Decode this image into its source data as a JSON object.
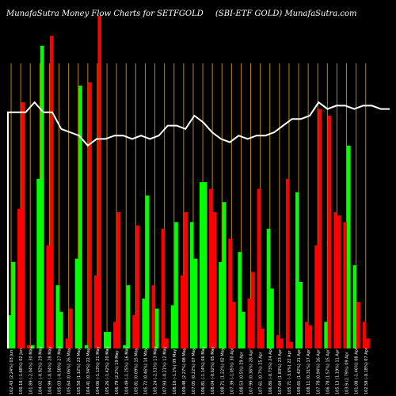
{
  "header": {
    "left_title": "MunafaSutra  Money Flow  Charts for SETFGOLD",
    "right_title": "(SBI-ETF GOLD) MunafaSutra.com"
  },
  "colors": {
    "background": "#000000",
    "grid": "#b8860b",
    "up": "#00ff00",
    "down": "#ff0000",
    "price_line": "#ffffff"
  },
  "chart_data": {
    "type": "bar",
    "title": "MunafaSutra  Money Flow  Charts for SETFGOLD",
    "legend": "none",
    "grid": true,
    "ylim": [
      0,
      100
    ],
    "categories": [
      "102.43 (2.24%) 03 Jun",
      "100.18 (-1.68%) 02 Jun",
      "101.89 (-2.04%) 30 May",
      "104.02 (-0.92%) 29 May",
      "104.99 (-0.04%) 28 May",
      "105.03 (-0.58%) 27 May",
      "105.64 (0.06%) 26 May",
      "105.58 (1.12%) 23 May",
      "104.41 (0.34%) 22 May",
      "104.06 (-1.13%) 21 May",
      "105.26 (-1.42%) 20 May",
      "106.79 (2.2%) 19 May",
      "104.49 (-1.25%) 16 May",
      "105.81 (0.09%) 15 May",
      "105.72 (0.46%) 14 May",
      "105.24 (-2.51%) 13 May",
      "107.93 (-0.21%) 12 May",
      "108.16 (-1.2%) 09 May",
      "109.48 (2.27%) 08 May",
      "107.05 (0.22%) 07 May",
      "106.81 (-1.14%) 06 May",
      "108.04 (-0.62%) 05 May",
      "108.71 (1.22%) 02 May",
      "107.39 (-1.05%) 30 Apr",
      "108.53 (0.5%) 29 Apr",
      "107.99 (0.36%) 28 Apr",
      "107.61 (0.7%) 25 Apr",
      "106.86 (-0.73%) 24 Apr",
      "107.64 (1.83%) 23 Apr",
      "105.71 (-3.6%) 22 Apr",
      "109.65 (1.42%) 21 Apr",
      "108.11 (0.31%) 17 Apr",
      "107.78 (0.94%) 16 Apr",
      "106.78 (1.57%) 15 Apr",
      "105.13 (1.19%) 11 Apr",
      "103.9 (2.79%) 09 Apr",
      "101.08 (-1.46%) 08 Apr",
      "102.58 (-0.18%) 07 Apr"
    ],
    "series": [
      {
        "values": [
          10,
          42,
          1,
          51,
          31,
          19,
          3,
          27,
          1,
          22,
          5,
          8,
          1,
          10,
          15,
          19,
          36,
          13,
          22,
          38,
          50,
          48,
          26,
          33,
          29,
          15,
          48,
          36,
          4,
          51,
          47,
          8,
          31,
          8,
          41,
          38,
          25,
          8
        ],
        "directions": [
          "up",
          "down",
          "down",
          "up",
          "down",
          "up",
          "down",
          "up",
          "up",
          "down",
          "up",
          "down",
          "up",
          "down",
          "up",
          "down",
          "down",
          "up",
          "down",
          "up",
          "up",
          "down",
          "up",
          "down",
          "up",
          "down",
          "down",
          "up",
          "down",
          "down",
          "up",
          "down",
          "down",
          "up",
          "down",
          "down",
          "up",
          "down"
        ]
      },
      {
        "values": [
          26,
          74,
          1,
          91,
          94,
          11,
          12,
          79,
          80,
          100,
          5,
          41,
          19,
          37,
          46,
          12,
          3,
          38,
          41,
          27,
          50,
          41,
          44,
          14,
          11,
          23,
          6,
          18,
          3,
          2,
          20,
          7,
          72,
          70,
          40,
          61,
          14,
          3
        ],
        "directions": [
          "up",
          "down",
          "up",
          "up",
          "down",
          "up",
          "down",
          "up",
          "down",
          "down",
          "up",
          "down",
          "up",
          "down",
          "up",
          "up",
          "down",
          "up",
          "down",
          "up",
          "up",
          "down",
          "up",
          "down",
          "up",
          "down",
          "down",
          "up",
          "down",
          "down",
          "up",
          "down",
          "down",
          "down",
          "down",
          "up",
          "down",
          "down"
        ]
      }
    ],
    "price_line": [
      71,
      71,
      71,
      74,
      71,
      71,
      66,
      65,
      64,
      61,
      63,
      63,
      64,
      64,
      63,
      64,
      63,
      64,
      67,
      67,
      66,
      70,
      68,
      65,
      63,
      62,
      64,
      63,
      64,
      64,
      65,
      67,
      69,
      69,
      70,
      74,
      72,
      73,
      73,
      72,
      73,
      73,
      72,
      72
    ]
  }
}
